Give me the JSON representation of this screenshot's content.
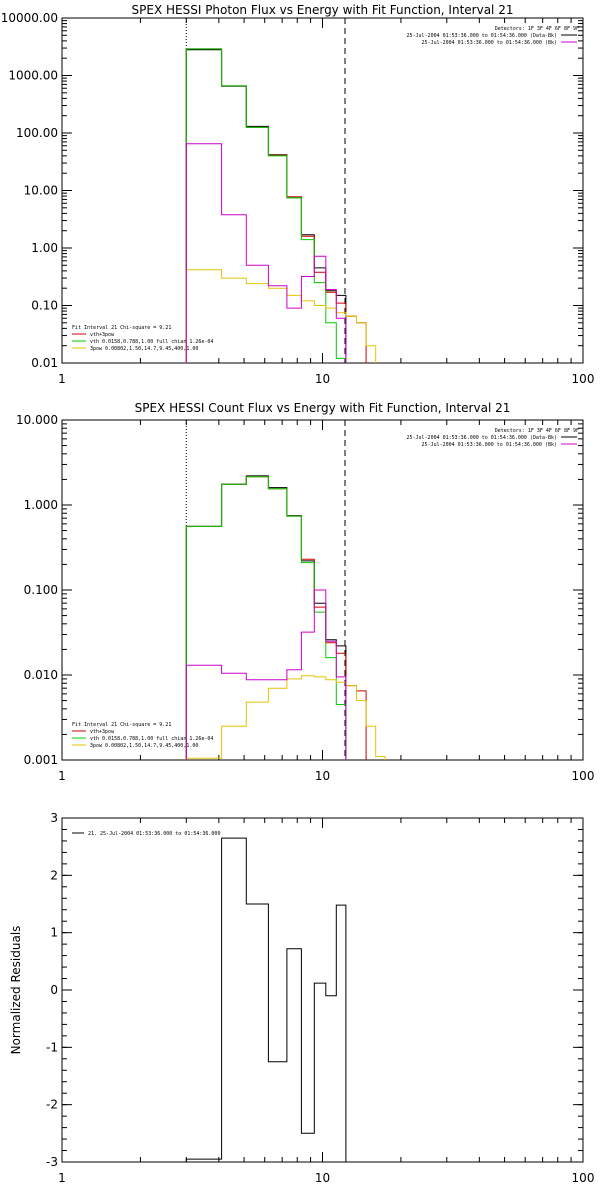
{
  "chart_data": [
    {
      "type": "line",
      "title": "SPEX HESSI Photon Flux vs Energy with Fit Function, Interval 21",
      "xscale": "log",
      "yscale": "log",
      "xlim": [
        1,
        100
      ],
      "ylim": [
        0.01,
        10000
      ],
      "xticks": [
        1,
        10,
        100
      ],
      "xtick_labels": [
        "1",
        "10",
        "100"
      ],
      "yticks": [
        0.01,
        0.1,
        1,
        10,
        100,
        1000,
        10000
      ],
      "ytick_labels": [
        "0.01",
        "0.10",
        "1.00",
        "10.00",
        "100.00",
        "1000.00",
        "10000.00"
      ],
      "vlines": [
        {
          "x": 3,
          "style": "dotted"
        },
        {
          "x": 12.2,
          "style": "dashed"
        }
      ],
      "legend_top": {
        "header": "Detectors: 1F 3F 4F 6F 8F 9F",
        "entries": [
          {
            "label": "25-Jul-2004 01:53:36.000 to 01:54:36.000 (Data-Bk)",
            "color": "#000000"
          },
          {
            "label": "25-Jul-2004 01:53:36.000 to 01:54:36.000 (Bk)",
            "color": "#cc00cc"
          }
        ]
      },
      "legend_bottom": {
        "header": "Fit Interval 21    Chi-square = 9.21",
        "entries": [
          {
            "label": "vth+3pow",
            "color": "#cc0000"
          },
          {
            "label": "vth 0.0158,0.788,1.00  full chian 1.26e-04",
            "color": "#00cc00"
          },
          {
            "label": "3pow 0.00802,1.50,14.7,9.45,400,1.00",
            "color": "#e6c200"
          }
        ]
      },
      "series": [
        {
          "name": "25-Jul-2004 01:53:36.000 to 01:54:36.000 (Data-Bk)",
          "color": "#000000",
          "edges": [
            3.0,
            4.1,
            5.1,
            6.2,
            7.3,
            8.3,
            9.3,
            10.3,
            11.3,
            12.3
          ],
          "values": [
            2800,
            650,
            130,
            42,
            7.5,
            1.7,
            0.45,
            0.18,
            0.15
          ]
        },
        {
          "name": "vth+3pow",
          "color": "#cc0000",
          "edges": [
            3.0,
            4.1,
            5.1,
            6.2,
            7.3,
            8.3,
            9.3,
            10.3,
            11.3,
            12.3,
            13.5,
            14.7
          ],
          "values": [
            2900,
            660,
            125,
            41,
            7.8,
            1.6,
            0.38,
            0.17,
            0.11,
            0.065,
            0.05
          ]
        },
        {
          "name": "vth 0.0158,0.788,1.00  full chian 1.26e-04",
          "color": "#00cc00",
          "edges": [
            3.0,
            4.1,
            5.1,
            6.2,
            7.3,
            8.3,
            9.3,
            10.3,
            11.3,
            12.3
          ],
          "values": [
            2900,
            660,
            125,
            40,
            7.5,
            1.4,
            0.25,
            0.05,
            0.012
          ]
        },
        {
          "name": "3pow 0.00802,1.50,14.7,9.45,400,1.00",
          "color": "#e6c200",
          "edges": [
            3.0,
            4.1,
            5.1,
            6.2,
            7.3,
            8.3,
            9.3,
            10.3,
            11.3,
            12.3,
            13.5,
            14.7,
            16.0
          ],
          "values": [
            0.42,
            0.3,
            0.24,
            0.2,
            0.15,
            0.12,
            0.1,
            0.09,
            0.075,
            0.065,
            0.05,
            0.02
          ]
        },
        {
          "name": "25-Jul-2004 01:53:36.000 to 01:54:36.000 (Bk)",
          "color": "#cc00cc",
          "edges": [
            3.0,
            4.1,
            5.1,
            6.2,
            7.3,
            8.3,
            9.3,
            10.3,
            11.3,
            12.3
          ],
          "values": [
            65,
            3.8,
            0.5,
            0.22,
            0.09,
            0.32,
            0.72,
            0.19,
            0.06
          ]
        }
      ]
    },
    {
      "type": "line",
      "title": "SPEX HESSI Count Flux vs Energy with Fit Function, Interval 21",
      "xscale": "log",
      "yscale": "log",
      "xlim": [
        1,
        100
      ],
      "ylim": [
        0.001,
        10
      ],
      "xticks": [
        1,
        10,
        100
      ],
      "xtick_labels": [
        "1",
        "10",
        "100"
      ],
      "yticks": [
        0.001,
        0.01,
        0.1,
        1,
        10
      ],
      "ytick_labels": [
        "0.001",
        "0.010",
        "0.100",
        "1.000",
        "10.000"
      ],
      "vlines": [
        {
          "x": 3,
          "style": "dotted"
        },
        {
          "x": 12.2,
          "style": "dashed"
        }
      ],
      "legend_top": {
        "header": "Detectors: 1F 3F 4F 6F 8F 9F",
        "entries": [
          {
            "label": "25-Jul-2004 01:53:36.000 to 01:54:36.000 (Data-Bk)",
            "color": "#000000"
          },
          {
            "label": "25-Jul-2004 01:53:36.000 to 01:54:36.000 (Bk)",
            "color": "#cc00cc"
          }
        ]
      },
      "legend_bottom": {
        "header": "Fit Interval 21    Chi-square = 9.21",
        "entries": [
          {
            "label": "vth+3pow",
            "color": "#cc0000"
          },
          {
            "label": "vth 0.0158,0.788,1.00  full chian 1.26e-04",
            "color": "#00cc00"
          },
          {
            "label": "3pow 0.00802,1.50,14.7,9.45,400,1.00",
            "color": "#e6c200"
          }
        ]
      },
      "series": [
        {
          "name": "25-Jul-2004 01:53:36.000 to 01:54:36.000 (Data-Bk)",
          "color": "#000000",
          "edges": [
            3.0,
            4.1,
            5.1,
            6.2,
            7.3,
            8.3,
            9.3,
            10.3,
            11.3,
            12.3
          ],
          "values": [
            0.56,
            1.75,
            2.2,
            1.6,
            0.75,
            0.22,
            0.07,
            0.026,
            0.022
          ]
        },
        {
          "name": "vth+3pow",
          "color": "#cc0000",
          "edges": [
            3.0,
            4.1,
            5.1,
            6.2,
            7.3,
            8.3,
            9.3,
            10.3,
            11.3,
            12.3,
            13.5,
            14.7
          ],
          "values": [
            0.56,
            1.75,
            2.15,
            1.55,
            0.74,
            0.23,
            0.063,
            0.024,
            0.018,
            0.0075,
            0.0065
          ]
        },
        {
          "name": "vth 0.0158,0.788,1.00  full chian 1.26e-04",
          "color": "#00cc00",
          "edges": [
            3.0,
            4.1,
            5.1,
            6.2,
            7.3,
            8.3,
            9.3,
            10.3,
            11.3,
            12.3
          ],
          "values": [
            0.56,
            1.75,
            2.15,
            1.55,
            0.74,
            0.21,
            0.055,
            0.016,
            0.0045
          ]
        },
        {
          "name": "3pow 0.00802,1.50,14.7,9.45,400,1.00",
          "color": "#e6c200",
          "edges": [
            3.0,
            4.1,
            5.1,
            6.2,
            7.3,
            8.3,
            9.3,
            10.3,
            11.3,
            12.3,
            13.5,
            14.7,
            16.0,
            17.4
          ],
          "values": [
            0.00105,
            0.0025,
            0.0048,
            0.007,
            0.009,
            0.0098,
            0.0095,
            0.0088,
            0.0082,
            0.0075,
            0.005,
            0.0025,
            0.0011
          ]
        },
        {
          "name": "25-Jul-2004 01:53:36.000 to 01:54:36.000 (Bk)",
          "color": "#cc00cc",
          "edges": [
            3.0,
            4.1,
            5.1,
            6.2,
            7.3,
            8.3,
            9.3,
            10.3,
            11.3,
            12.3
          ],
          "values": [
            0.013,
            0.0105,
            0.0088,
            0.0088,
            0.0115,
            0.032,
            0.1,
            0.025,
            0.0095
          ]
        }
      ]
    },
    {
      "type": "line",
      "title": "",
      "xscale": "log",
      "yscale": "linear",
      "xlim": [
        1,
        100
      ],
      "ylim": [
        -3,
        3
      ],
      "ylabel": "Normalized Residuals",
      "xticks": [
        1,
        10,
        100
      ],
      "xtick_labels": [
        "1",
        "10",
        "100"
      ],
      "yticks": [
        -3,
        -2,
        -1,
        0,
        1,
        2,
        3
      ],
      "ytick_labels": [
        "-3",
        "-2",
        "-1",
        "0",
        "1",
        "2",
        "3"
      ],
      "legend_top": {
        "header": "",
        "entries": [
          {
            "label": "21. 25-Jul-2004 01:53:36.000 to 01:54:36.000",
            "color": "#000000"
          }
        ]
      },
      "series": [
        {
          "name": "21. 25-Jul-2004 01:53:36.000 to 01:54:36.000",
          "color": "#000000",
          "edges": [
            3.0,
            4.1,
            5.1,
            6.2,
            7.3,
            8.3,
            9.3,
            10.3,
            11.3,
            12.3
          ],
          "values": [
            -2.95,
            2.65,
            1.5,
            -1.25,
            0.72,
            -2.5,
            0.12,
            -0.1,
            1.48
          ],
          "drop_to": -3
        }
      ]
    }
  ]
}
